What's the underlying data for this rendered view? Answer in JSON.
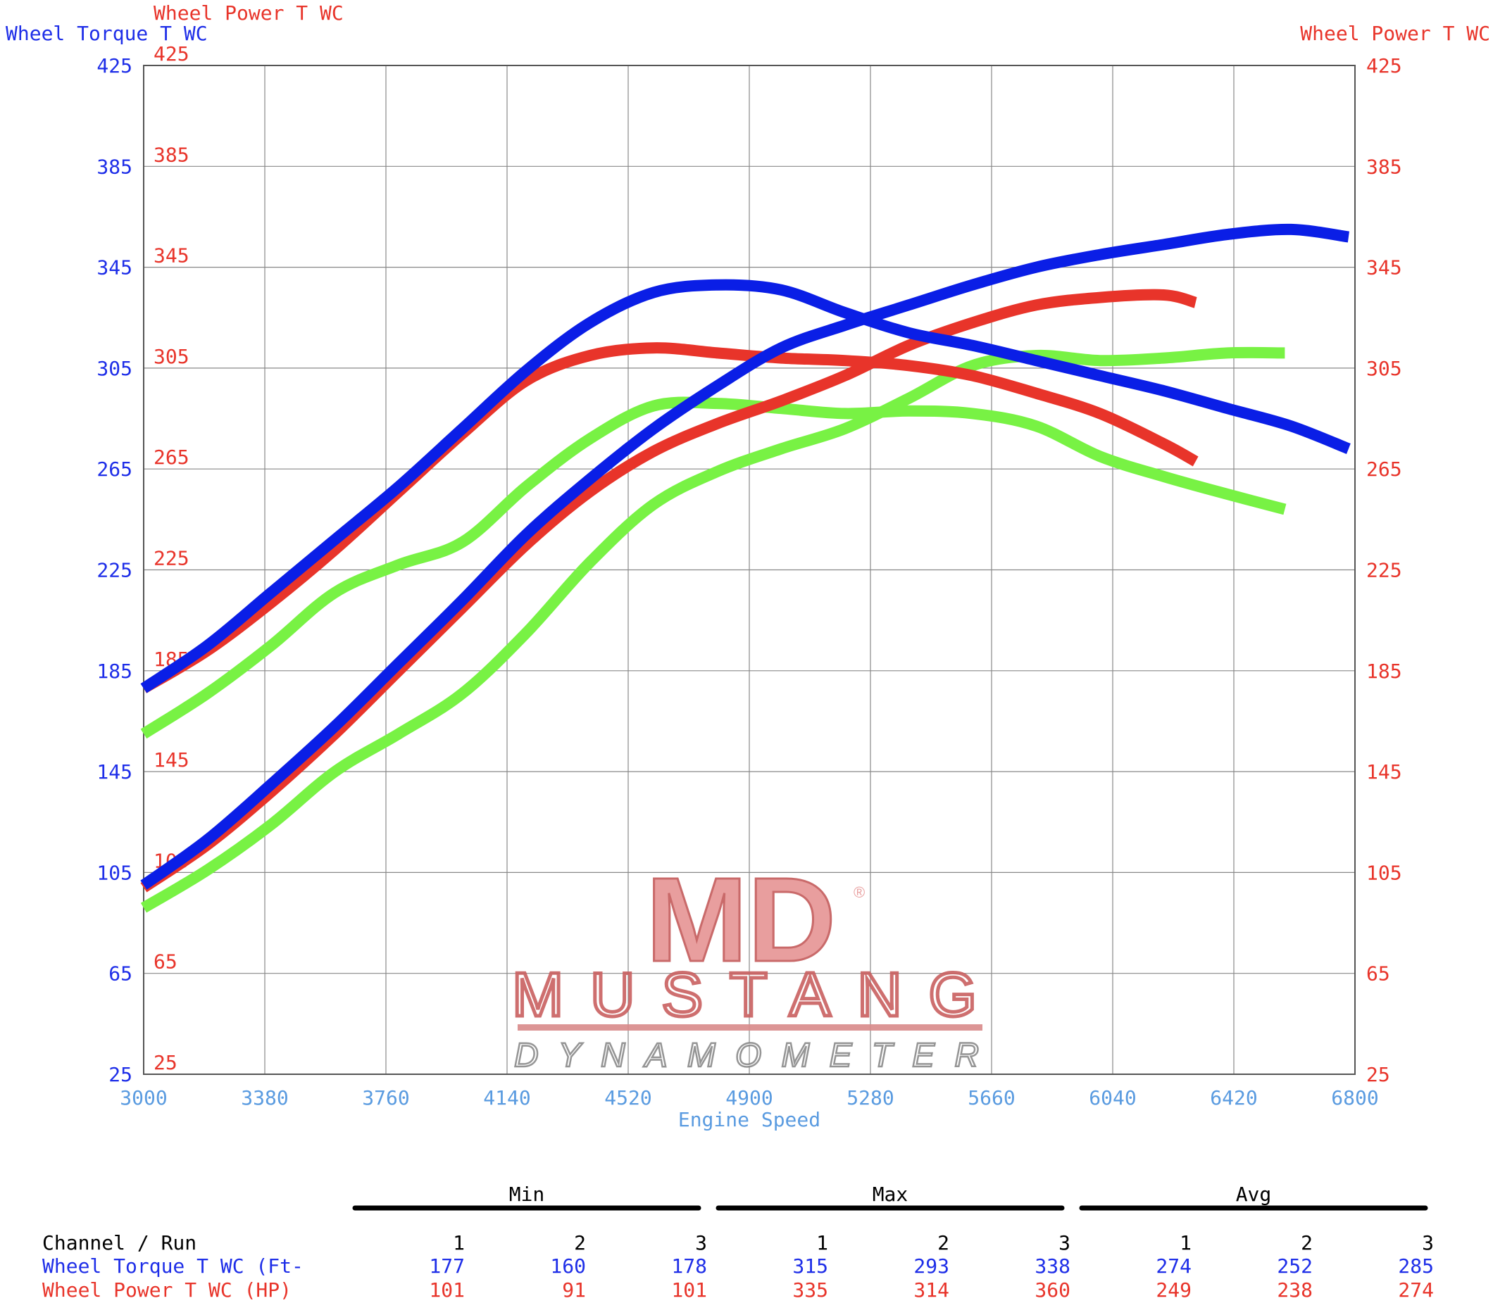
{
  "chart_data": {
    "type": "line",
    "left_axis_title": "Wheel Torque T WC",
    "left_inner_axis_title": "Wheel Power T WC",
    "right_axis_title": "Wheel Power T WC",
    "xlabel": "Engine Speed",
    "xlim": [
      3000,
      6800
    ],
    "x_ticks": [
      "3000",
      "3380",
      "3760",
      "4140",
      "4520",
      "4900",
      "5280",
      "5660",
      "6040",
      "6420",
      "6800"
    ],
    "ylim": [
      25,
      425
    ],
    "y_ticks": [
      "425",
      "385",
      "345",
      "305",
      "265",
      "225",
      "185",
      "145",
      "105",
      "65",
      "25"
    ],
    "grid": true,
    "colors": {
      "torque": "#0a1ee6",
      "power": "#e8342a",
      "run_green": "#78f244",
      "torque_text": "#1e2ee8",
      "power_text": "#e8342a",
      "axis_label": "#5a9be0"
    },
    "series": [
      {
        "color": "torque",
        "x": [
          3000,
          3200,
          3400,
          3600,
          3800,
          4000,
          4200,
          4400,
          4600,
          4800,
          5000,
          5200,
          5400,
          5600,
          5800,
          6000,
          6200,
          6400,
          6600,
          6780
        ],
        "y": [
          100,
          118,
          140,
          163,
          188,
          213,
          239,
          261,
          281,
          298,
          313,
          322,
          330,
          338,
          345,
          350,
          354,
          358,
          360,
          357
        ]
      },
      {
        "color": "torque",
        "x": [
          3000,
          3200,
          3400,
          3600,
          3800,
          4000,
          4200,
          4400,
          4600,
          4800,
          5000,
          5200,
          5400,
          5600,
          5800,
          6000,
          6200,
          6400,
          6600,
          6780
        ],
        "y": [
          178,
          195,
          216,
          237,
          258,
          281,
          304,
          323,
          335,
          338,
          336,
          327,
          319,
          314,
          308,
          302,
          296,
          289,
          282,
          273
        ]
      },
      {
        "color": "power",
        "x": [
          3000,
          3200,
          3400,
          3600,
          3800,
          4000,
          4200,
          4400,
          4600,
          4800,
          5000,
          5200,
          5400,
          5600,
          5800,
          6000,
          6200,
          6300
        ],
        "y": [
          99,
          116,
          137,
          160,
          185,
          210,
          235,
          256,
          272,
          283,
          292,
          302,
          314,
          323,
          330,
          333,
          334,
          331
        ]
      },
      {
        "color": "power",
        "x": [
          3000,
          3200,
          3400,
          3600,
          3800,
          4000,
          4200,
          4400,
          4600,
          4800,
          5000,
          5200,
          5400,
          5600,
          5800,
          6000,
          6200,
          6300
        ],
        "y": [
          178,
          193,
          212,
          233,
          256,
          279,
          300,
          310,
          313,
          311,
          309,
          308,
          306,
          302,
          295,
          287,
          275,
          268
        ]
      },
      {
        "color": "run_green",
        "x": [
          3000,
          3200,
          3400,
          3600,
          3800,
          4000,
          4200,
          4400,
          4600,
          4800,
          5000,
          5200,
          5400,
          5600,
          5800,
          6000,
          6200,
          6400,
          6580
        ],
        "y": [
          91,
          106,
          124,
          145,
          160,
          176,
          200,
          228,
          251,
          264,
          273,
          281,
          293,
          306,
          310,
          308,
          309,
          311,
          311
        ]
      },
      {
        "color": "run_green",
        "x": [
          3000,
          3200,
          3400,
          3600,
          3800,
          4000,
          4200,
          4400,
          4600,
          4800,
          5000,
          5200,
          5400,
          5600,
          5800,
          6000,
          6200,
          6400,
          6580
        ],
        "y": [
          160,
          176,
          195,
          216,
          227,
          236,
          258,
          277,
          290,
          291,
          289,
          287,
          288,
          287,
          282,
          270,
          262,
          255,
          249
        ]
      }
    ],
    "logo_text": [
      "MD",
      "MUSTANG",
      "DYNAMOMETER",
      "®"
    ]
  },
  "summary_table": {
    "groups": [
      "Min",
      "Max",
      "Avg"
    ],
    "header_label": "Channel / Run",
    "runs": [
      "1",
      "2",
      "3",
      "1",
      "2",
      "3",
      "1",
      "2",
      "3"
    ],
    "rows": [
      {
        "label": "Wheel Torque T WC (Ft-",
        "color": "torque_text",
        "values": [
          "177",
          "160",
          "178",
          "315",
          "293",
          "338",
          "274",
          "252",
          "285"
        ]
      },
      {
        "label": "Wheel Power T WC (HP)",
        "color": "power_text",
        "values": [
          "101",
          "91",
          "101",
          "335",
          "314",
          "360",
          "249",
          "238",
          "274"
        ]
      }
    ]
  }
}
